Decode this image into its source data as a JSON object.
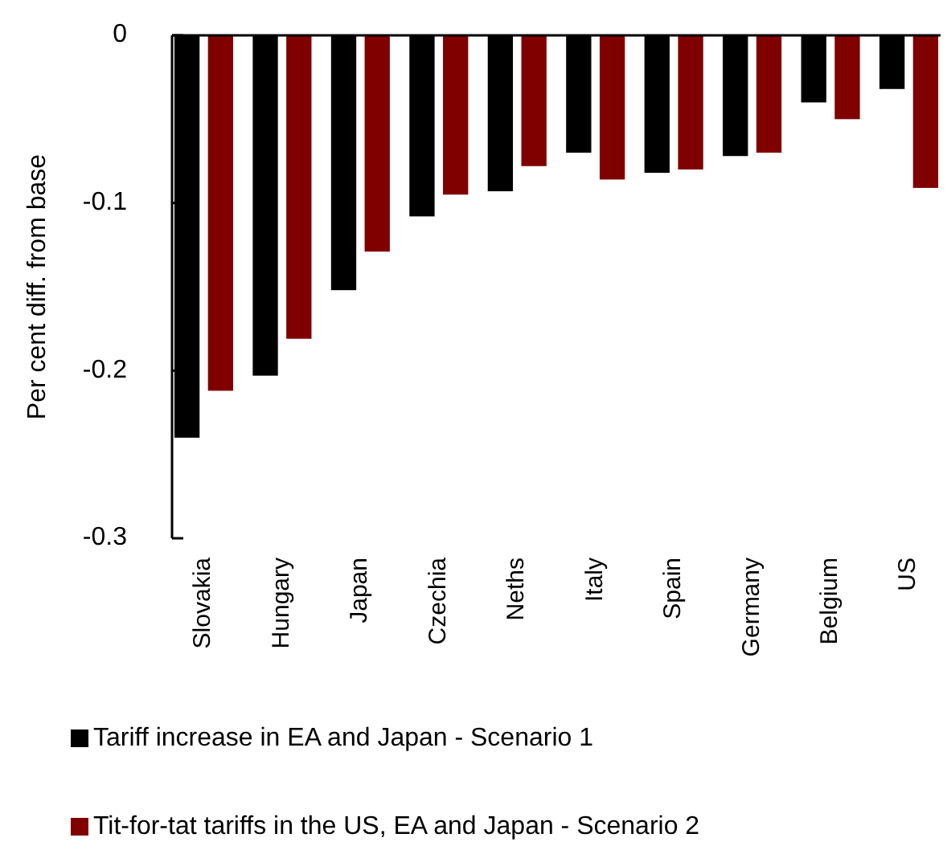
{
  "chart_data": {
    "type": "bar",
    "ylabel": "Per cent diff. from base",
    "categories": [
      "Slovakia",
      "Hungary",
      "Japan",
      "Czechia",
      "Neths",
      "Italy",
      "Spain",
      "Germany",
      "Belgium",
      "US"
    ],
    "series": [
      {
        "name": "Tariff increase in EA and Japan - Scenario 1",
        "color": "#000000",
        "values": [
          -0.24,
          -0.203,
          -0.152,
          -0.108,
          -0.093,
          -0.07,
          -0.082,
          -0.072,
          -0.04,
          -0.032
        ]
      },
      {
        "name": "Tit-for-tat tariffs in the US, EA and Japan - Scenario 2",
        "color": "#800000",
        "values": [
          -0.212,
          -0.181,
          -0.129,
          -0.095,
          -0.078,
          -0.086,
          -0.08,
          -0.07,
          -0.05,
          -0.091
        ]
      }
    ],
    "ylim": [
      -0.3,
      0
    ],
    "yticks": [
      {
        "value": 0,
        "label": "0"
      },
      {
        "value": -0.1,
        "label": "-0.1"
      },
      {
        "value": -0.2,
        "label": "-0.2"
      },
      {
        "value": -0.3,
        "label": "-0.3"
      }
    ],
    "grid": false,
    "legend": "bottom"
  }
}
